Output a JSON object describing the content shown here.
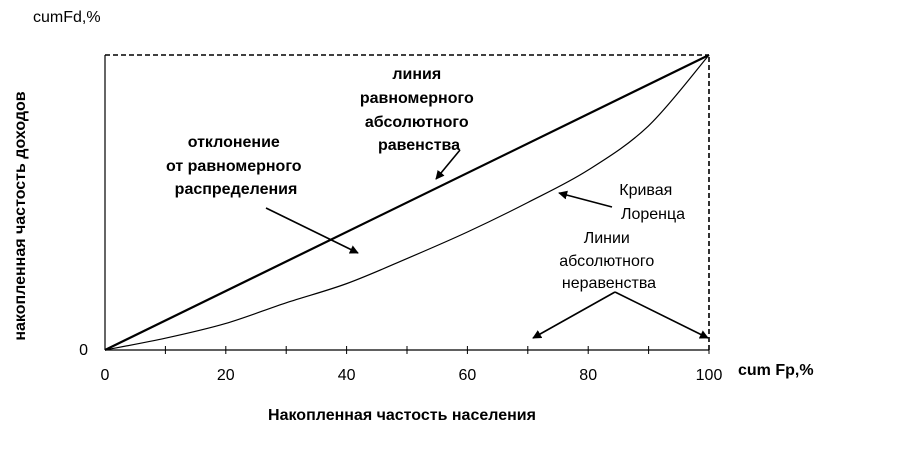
{
  "chart_data": {
    "type": "line",
    "y_axis_title": "cumFd,%",
    "x_axis_title": "cum Fp,%",
    "ylabel": "накопленная частость доходов",
    "xlabel": "Накопленная частость населения",
    "xlim": [
      0,
      100
    ],
    "ylim": [
      0,
      100
    ],
    "x_ticks": [
      "0",
      "20",
      "40",
      "60",
      "80",
      "100"
    ],
    "y_ticks": [
      "0"
    ],
    "grid": false,
    "series": [
      {
        "kind": "equality-line",
        "x": [
          0,
          100
        ],
        "y": [
          0,
          100
        ]
      },
      {
        "kind": "lorenz-curve",
        "x": [
          0,
          10,
          20,
          30,
          40,
          50,
          60,
          70,
          80,
          90,
          100
        ],
        "y": [
          0,
          4,
          9,
          16,
          22.5,
          31,
          40,
          50,
          61,
          76,
          100
        ]
      },
      {
        "kind": "absolute-inequality",
        "x": [
          0,
          100,
          100
        ],
        "y": [
          0,
          0,
          100
        ]
      }
    ],
    "annotations": {
      "equality_line": [
        "линия",
        "равномерного",
        "абсолютного",
        "равенства"
      ],
      "deviation": [
        "отклонение",
        "от равномерного",
        "распределения"
      ],
      "lorenz": [
        "Кривая",
        "Лоренца"
      ],
      "inequality": [
        "Линии",
        "абсолютного",
        "неравенства"
      ]
    }
  }
}
